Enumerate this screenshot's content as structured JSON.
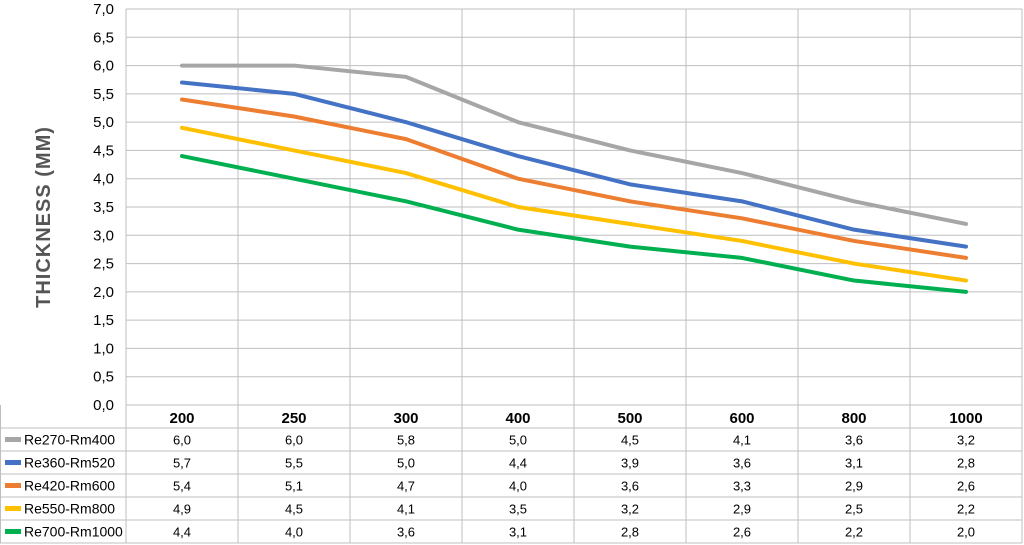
{
  "chart_data": {
    "type": "line",
    "ylabel": "THICKNESS (MM)",
    "xlabel": "",
    "categories": [
      "200",
      "250",
      "300",
      "400",
      "500",
      "600",
      "800",
      "1000"
    ],
    "ylim": [
      0,
      7
    ],
    "yticks": [
      "0,0",
      "0,5",
      "1,0",
      "1,5",
      "2,0",
      "2,5",
      "3,0",
      "3,5",
      "4,0",
      "4,5",
      "5,0",
      "5,5",
      "6,0",
      "6,5",
      "7,0"
    ],
    "grid": true,
    "legend": "data table below chart",
    "series": [
      {
        "name": "Re270-Rm400",
        "color": "#a6a6a6",
        "values": [
          6.0,
          6.0,
          5.8,
          5.0,
          4.5,
          4.1,
          3.6,
          3.2
        ],
        "labels": [
          "6,0",
          "6,0",
          "5,8",
          "5,0",
          "4,5",
          "4,1",
          "3,6",
          "3,2"
        ]
      },
      {
        "name": "Re360-Rm520",
        "color": "#4472c4",
        "values": [
          5.7,
          5.5,
          5.0,
          4.4,
          3.9,
          3.6,
          3.1,
          2.8
        ],
        "labels": [
          "5,7",
          "5,5",
          "5,0",
          "4,4",
          "3,9",
          "3,6",
          "3,1",
          "2,8"
        ]
      },
      {
        "name": "Re420-Rm600",
        "color": "#ed7d31",
        "values": [
          5.4,
          5.1,
          4.7,
          4.0,
          3.6,
          3.3,
          2.9,
          2.6
        ],
        "labels": [
          "5,4",
          "5,1",
          "4,7",
          "4,0",
          "3,6",
          "3,3",
          "2,9",
          "2,6"
        ]
      },
      {
        "name": "Re550-Rm800",
        "color": "#ffc000",
        "values": [
          4.9,
          4.5,
          4.1,
          3.5,
          3.2,
          2.9,
          2.5,
          2.2
        ],
        "labels": [
          "4,9",
          "4,5",
          "4,1",
          "3,5",
          "3,2",
          "2,9",
          "2,5",
          "2,2"
        ]
      },
      {
        "name": "Re700-Rm1000",
        "color": "#00b050",
        "values": [
          4.4,
          4.0,
          3.6,
          3.1,
          2.8,
          2.6,
          2.2,
          2.0
        ],
        "labels": [
          "4,4",
          "4,0",
          "3,6",
          "3,1",
          "2,8",
          "2,6",
          "2,2",
          "2,0"
        ]
      }
    ]
  }
}
